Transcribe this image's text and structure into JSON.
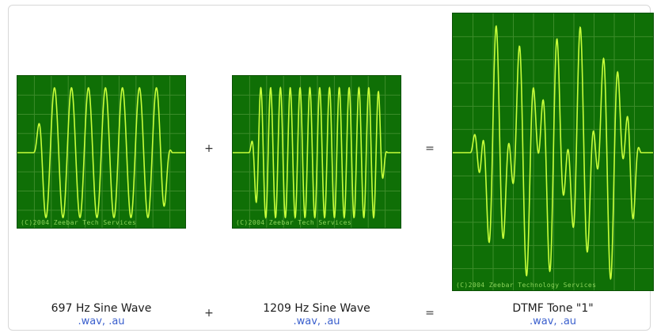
{
  "colors": {
    "panel_bg": "#0f6f06",
    "grid": "#3c8c2a",
    "wave": "#c7ff3a",
    "watermark": "#8bd35a",
    "link": "#3a5fcd"
  },
  "panels": [
    {
      "watermark": "(C)2004 Zeebar Tech Services",
      "frequency_hz": 697
    },
    {
      "watermark": "(C)2004 Zeebar Tech Services",
      "frequency_hz": 1209
    },
    {
      "watermark": "(C)2004 Zeebar Technology Services",
      "frequencies_hz": [
        697,
        1209
      ]
    }
  ],
  "operators": {
    "plus": "+",
    "equals": "="
  },
  "captions": [
    {
      "title": "697 Hz Sine Wave",
      "link1": ".wav",
      "sep": ",",
      "link2": ".au"
    },
    {
      "title": "1209 Hz Sine Wave",
      "link1": ".wav",
      "sep": ",",
      "link2": ".au"
    },
    {
      "title": "DTMF Tone \"1\"",
      "link1": ".wav",
      "sep": ",",
      "link2": ".au"
    }
  ]
}
